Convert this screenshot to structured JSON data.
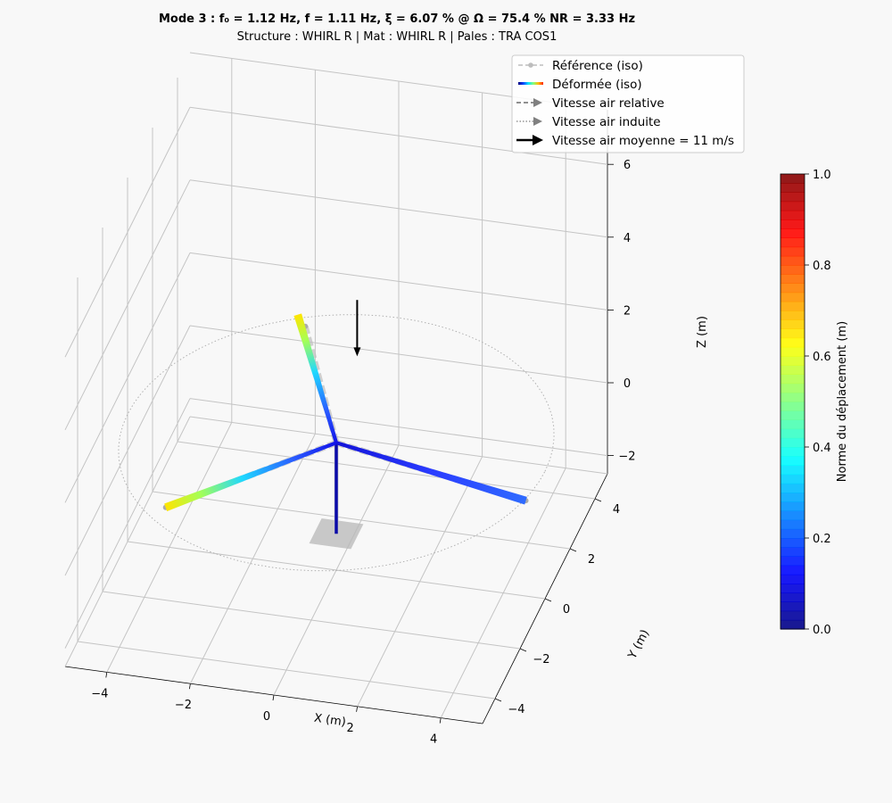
{
  "title": {
    "line1": "Mode 3 : f₀ = 1.12 Hz, f = 1.11 Hz, ξ = 6.07 % @ Ω = 75.4 % NR = 3.33 Hz",
    "line2": "Structure : WHIRL R | Mat : WHIRL R | Pales : TRA COS1"
  },
  "legend": {
    "items": [
      {
        "label": "Référence (iso)",
        "icon": "dashed-line-with-circle-markers",
        "color": "#bdbdbd"
      },
      {
        "label": "Déformée (iso)",
        "icon": "jet-gradient-line"
      },
      {
        "label": "Vitesse air relative",
        "icon": "dashed-arrow",
        "color": "#808080"
      },
      {
        "label": "Vitesse air induite",
        "icon": "dotted-arrow",
        "color": "#808080"
      },
      {
        "label": "Vitesse air moyenne = 11 m/s",
        "icon": "solid-arrow",
        "color": "#000000"
      }
    ],
    "placement": "top-right"
  },
  "colorbar": {
    "label": "Norme du déplacement (m)",
    "colormap": "jet",
    "ticks": [
      "0.0",
      "0.2",
      "0.4",
      "0.6",
      "0.8",
      "1.0"
    ],
    "range": [
      0.0,
      1.0
    ],
    "levels": 50
  },
  "chart_data": {
    "type": "3d-line",
    "xlabel": "X (m)",
    "ylabel": "Y (m)",
    "zlabel": "Z (m)",
    "xticks": [
      "−4",
      "−2",
      "0",
      "2",
      "4"
    ],
    "yticks": [
      "−4",
      "−2",
      "0",
      "2",
      "4"
    ],
    "zticks": [
      "−2",
      "0",
      "2",
      "4",
      "6"
    ],
    "xlim": [
      -5,
      5
    ],
    "ylim": [
      -5,
      5
    ],
    "zlim": [
      -2.5,
      7.5
    ],
    "grid": true,
    "structure": {
      "hub": [
        0.0,
        0.0,
        1.0
      ],
      "mast_base": [
        0.0,
        0.0,
        -1.5
      ],
      "rotor_radius": 5.0,
      "reference_blade_tips": [
        [
          -3.1,
          -3.3,
          1.0
        ],
        [
          4.9,
          -1.2,
          1.0
        ],
        [
          -2.0,
          4.2,
          1.0
        ]
      ],
      "deformed_blade_tips": [
        [
          -3.1,
          -3.3,
          1.0,
          0.65
        ],
        [
          4.9,
          -1.2,
          1.0,
          0.15
        ],
        [
          -2.3,
          4.6,
          1.0,
          0.65
        ]
      ]
    },
    "mean_air_velocity_arrow": {
      "start": [
        0.5,
        0.0,
        5.0
      ],
      "end": [
        0.5,
        0.0,
        3.5
      ],
      "value_ms": 11
    }
  }
}
